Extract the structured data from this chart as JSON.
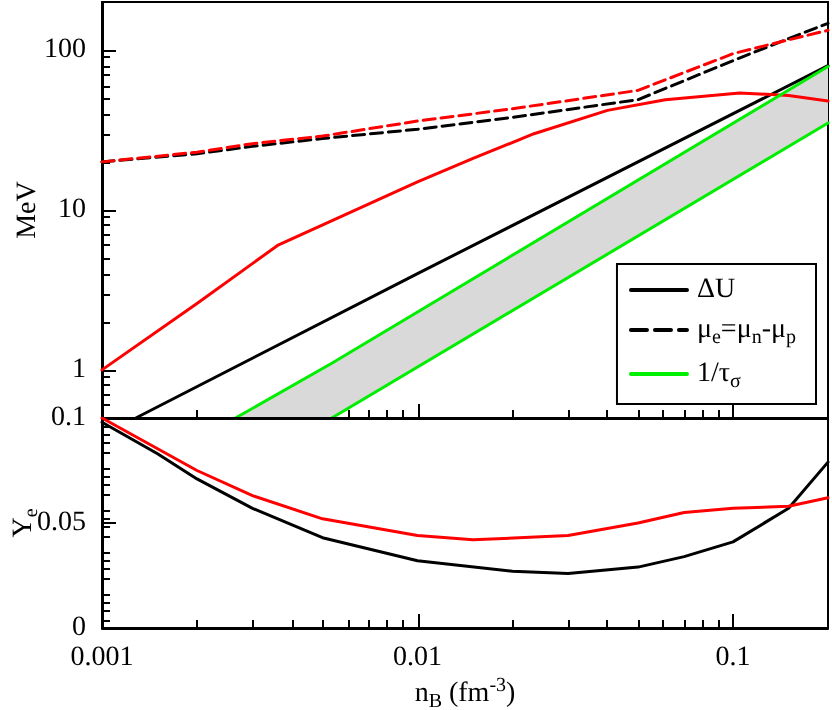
{
  "chart_data": [
    {
      "type": "line",
      "ylabel": "MeV",
      "xlim": [
        0.001,
        0.2
      ],
      "ylim": [
        0.5,
        200
      ],
      "xticks": [
        0.001,
        0.01,
        0.1
      ],
      "yticks": [
        1,
        10,
        100
      ],
      "log": "xy",
      "tick_labels": "y",
      "grid": false,
      "legend": "bottom right",
      "marker": "none",
      "series": [
        {
          "name": "ΔU",
          "color": "#000000",
          "line_style": "solid",
          "x": [
            0.00128,
            0.01,
            0.2
          ],
          "values": [
            0.5,
            4,
            80
          ]
        },
        {
          "color": "#ff0000",
          "line_style": "solid",
          "x": [
            0.001,
            0.002,
            0.0036,
            0.006,
            0.01,
            0.015,
            0.0234,
            0.04,
            0.061,
            0.105,
            0.15,
            0.2
          ],
          "values": [
            1,
            2.6,
            6,
            9.5,
            15,
            21,
            30,
            42,
            49,
            54,
            52,
            48
          ]
        },
        {
          "name": "μ$_{e}$=μ$_{n}$-μ$_{p}$",
          "color": "#000000",
          "line_style": "dashed",
          "x": [
            0.001,
            0.002,
            0.003,
            0.005,
            0.01,
            0.02,
            0.05,
            0.1,
            0.15,
            0.2
          ],
          "values": [
            20,
            22.5,
            25,
            28,
            32,
            38,
            49,
            86,
            118,
            147
          ]
        },
        {
          "color": "#ff0000",
          "line_style": "dashed",
          "x": [
            0.001,
            0.002,
            0.003,
            0.005,
            0.01,
            0.02,
            0.05,
            0.1,
            0.15,
            0.2
          ],
          "values": [
            20,
            23,
            26,
            29,
            36,
            43,
            56,
            95,
            116,
            133
          ]
        },
        {
          "name": "1/τ$_{σ}$",
          "color": "#00ee00",
          "line_style": "solid",
          "x": [
            0.00265,
            0.00535,
            0.2
          ],
          "values": [
            0.5,
            1.1,
            79
          ],
          "upper": [
            0.5,
            1.1,
            79
          ],
          "lower": [
            0.5,
            0.5,
            35
          ]
        },
        {
          "color": "#00ee00",
          "line_style": "solid",
          "x": [
            0.00535,
            0.2
          ],
          "values": [
            0.5,
            35
          ]
        }
      ]
    },
    {
      "type": "line",
      "xlabel": "n$_{B}$ (fm$^{-3}$)",
      "ylabel": "Y$_{e}$",
      "xlim": [
        0.001,
        0.2
      ],
      "ylim": [
        0,
        0.1
      ],
      "xticks": [
        0.001,
        0.01,
        0.1
      ],
      "yticks": [
        0,
        0.05,
        0.1
      ],
      "log": "x",
      "grid": false,
      "marker": "none",
      "series": [
        {
          "color": "#000000",
          "x": [
            0.001,
            0.0015,
            0.002,
            0.003,
            0.005,
            0.01,
            0.02,
            0.03,
            0.05,
            0.07,
            0.1,
            0.15,
            0.2
          ],
          "values": [
            0.098,
            0.083,
            0.071,
            0.057,
            0.043,
            0.032,
            0.027,
            0.026,
            0.029,
            0.034,
            0.041,
            0.057,
            0.079
          ]
        },
        {
          "color": "#ff0000",
          "x": [
            0.001,
            0.002,
            0.003,
            0.005,
            0.01,
            0.015,
            0.03,
            0.05,
            0.07,
            0.1,
            0.15,
            0.2
          ],
          "values": [
            0.1,
            0.075,
            0.063,
            0.052,
            0.044,
            0.042,
            0.044,
            0.05,
            0.055,
            0.057,
            0.058,
            0.062
          ]
        }
      ]
    }
  ]
}
